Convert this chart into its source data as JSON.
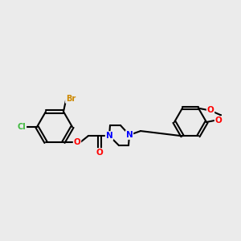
{
  "background_color": "#ebebeb",
  "bond_color": "#000000",
  "atom_colors": {
    "Cl": "#3cb83c",
    "Br": "#cc8800",
    "O": "#ff0000",
    "N": "#0000ff",
    "C": "#000000"
  },
  "figsize": [
    3.0,
    3.0
  ],
  "dpi": 100
}
